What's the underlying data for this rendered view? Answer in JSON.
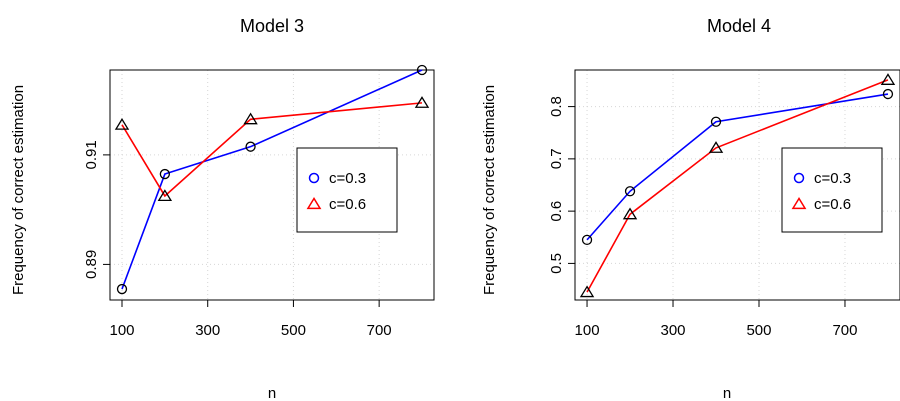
{
  "chart_data": [
    {
      "type": "line",
      "title": "Model 3",
      "xlabel": "n",
      "ylabel": "Frequency of correct estimation",
      "x": [
        100,
        200,
        400,
        800
      ],
      "xticks": [
        100,
        300,
        500,
        700
      ],
      "yticks": [
        0.89,
        0.91
      ],
      "xlim": [
        72,
        828
      ],
      "ylim": [
        0.8835,
        0.9255
      ],
      "grid": true,
      "legend_position": "right",
      "series": [
        {
          "name": "c=0.3",
          "color": "#0000ff",
          "marker": "circle",
          "values": [
            0.8855,
            0.9065,
            0.9115,
            0.9255
          ]
        },
        {
          "name": "c=0.6",
          "color": "#ff0000",
          "marker": "triangle",
          "values": [
            0.9155,
            0.9025,
            0.9165,
            0.9195
          ]
        }
      ]
    },
    {
      "type": "line",
      "title": "Model 4",
      "xlabel": "n",
      "ylabel": "Frequency of correct estimation",
      "x": [
        100,
        200,
        400,
        800
      ],
      "xticks": [
        100,
        300,
        500,
        700
      ],
      "yticks": [
        0.5,
        0.6,
        0.7,
        0.8
      ],
      "xlim": [
        72,
        828
      ],
      "ylim": [
        0.43,
        0.87
      ],
      "grid": true,
      "legend_position": "right",
      "series": [
        {
          "name": "c=0.3",
          "color": "#0000ff",
          "marker": "circle",
          "values": [
            0.545,
            0.638,
            0.771,
            0.824
          ]
        },
        {
          "name": "c=0.6",
          "color": "#ff0000",
          "marker": "triangle",
          "values": [
            0.445,
            0.594,
            0.721,
            0.851
          ]
        }
      ]
    }
  ]
}
